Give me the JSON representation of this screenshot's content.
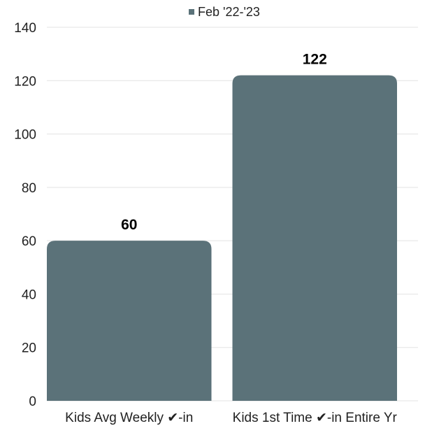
{
  "chart_data": {
    "type": "bar",
    "categories": [
      "Kids Avg Weekly ✔-in",
      "Kids 1st Time ✔-in Entire Yr"
    ],
    "series": [
      {
        "name": "Feb '22-'23",
        "values": [
          60,
          122
        ]
      }
    ],
    "data_labels": [
      "60",
      "122"
    ],
    "title": "",
    "xlabel": "",
    "ylabel": "",
    "ylim": [
      0,
      140
    ],
    "yticks": [
      0,
      20,
      40,
      60,
      80,
      100,
      120,
      140
    ],
    "grid": true,
    "legend_position": "top-center",
    "colors": {
      "bar": "#5b7279",
      "grid": "#e3e3e3"
    }
  }
}
